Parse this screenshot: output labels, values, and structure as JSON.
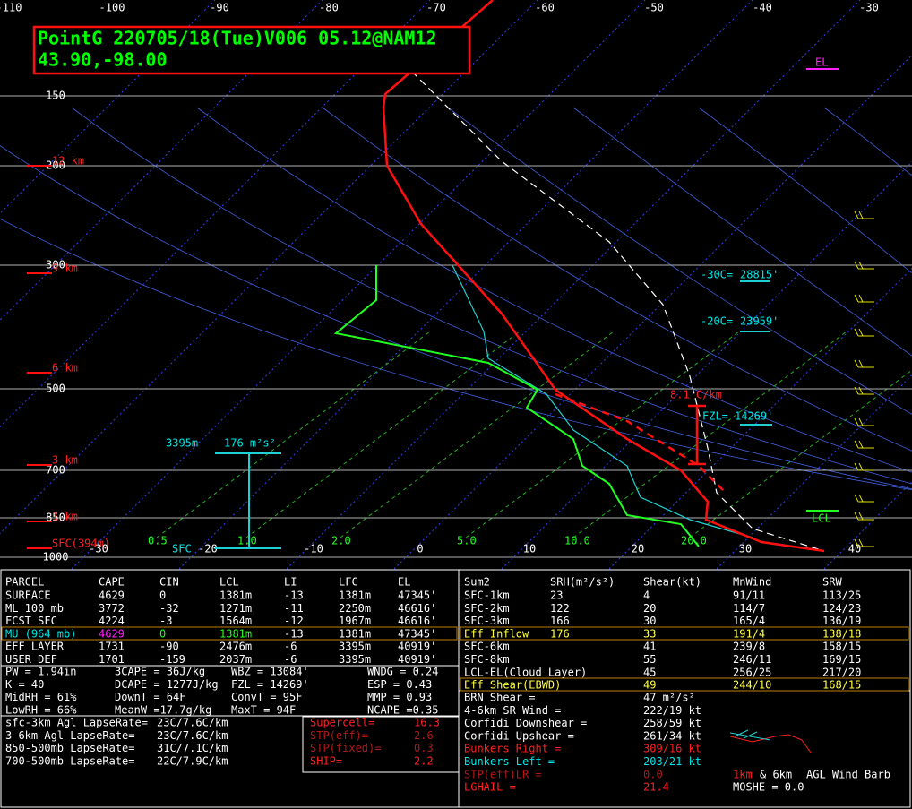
{
  "header": {
    "title": "PointG 220705/18(Tue)V006 05.12@NAM12",
    "location": "43.90,-98.00"
  },
  "skewt": {
    "top_temps": [
      "-110",
      "-100",
      "-90",
      "-80",
      "-70",
      "-60",
      "-50",
      "-40",
      "-30"
    ],
    "bottom_temps": [
      "-30",
      "-20",
      "-10",
      "0",
      "10",
      "20",
      "30",
      "40"
    ],
    "pressures": [
      "150",
      "200",
      "300",
      "500",
      "700",
      "850",
      "1000"
    ],
    "heights": [
      "12 km",
      "9 km",
      "6 km",
      "3 km",
      "1 km",
      "SFC(394m)"
    ],
    "mixing_ratios": [
      "0.5",
      "1.0",
      "2.0",
      "5.0",
      "10.0",
      "20.0"
    ],
    "annotations": {
      "el": "EL",
      "m30c": "-30C=",
      "m30c_height": "28815'",
      "m20c": "-20C=",
      "m20c_height": "23959'",
      "fzl": "FZL=",
      "fzl_height": "14269'",
      "lapse": "8.1 C/km",
      "eff_top": "3395m",
      "eff_srh": "176 m²s²",
      "sfc": "SFC",
      "lcl": "LCL"
    }
  },
  "parcel_table": {
    "header": [
      "PARCEL",
      "CAPE",
      "CIN",
      "LCL",
      "LI",
      "LFC",
      "EL"
    ],
    "rows": [
      [
        "SURFACE",
        "4629",
        "0",
        "1381m",
        "-13",
        "1381m",
        "47345'"
      ],
      [
        "ML 100 mb",
        "3772",
        "-32",
        "1271m",
        "-11",
        "2250m",
        "46616'"
      ],
      [
        "FCST SFC",
        "4224",
        "-3",
        "1564m",
        "-12",
        "1967m",
        "46616'"
      ],
      [
        "MU (964 mb)",
        "4629",
        "0",
        "1381m",
        "-13",
        "1381m",
        "47345'"
      ],
      [
        "EFF LAYER",
        "1731",
        "-90",
        "2476m",
        "-6",
        "3395m",
        "40919'"
      ],
      [
        "USER DEF",
        "1701",
        "-159",
        "2037m",
        "-6",
        "3395m",
        "40919'"
      ]
    ]
  },
  "indices": [
    [
      "PW = 1.94in",
      "3CAPE = 36J/kg",
      "WBZ = 13084'",
      "WNDG = 0.24"
    ],
    [
      "K = 40",
      "DCAPE = 1277J/kg",
      "FZL = 14269'",
      "ESP = 0.43"
    ],
    [
      "MidRH = 61%",
      "DownT = 64F",
      "ConvT = 95F",
      "MMP = 0.93"
    ],
    [
      "LowRH = 66%",
      "MeanW =17.7g/kg",
      "MaxT = 94F",
      "NCAPE =0.35"
    ]
  ],
  "lapse_rates": [
    [
      "sfc-3km Agl LapseRate=",
      "23C/7.6C/km"
    ],
    [
      "3-6km Agl LapseRate=",
      "23C/7.6C/km"
    ],
    [
      "850-500mb LapseRate=",
      "31C/7.1C/km"
    ],
    [
      "700-500mb LapseRate=",
      "22C/7.9C/km"
    ]
  ],
  "composites": [
    [
      "Supercell=",
      "16.3"
    ],
    [
      "STP(eff)=",
      "2.6"
    ],
    [
      "STP(fixed)=",
      "0.3"
    ],
    [
      "SHIP=",
      "2.2"
    ]
  ],
  "kinematic_table": {
    "header": [
      "Sum2",
      "SRH(m²/s²)",
      "Shear(kt)",
      "MnWind",
      "SRW"
    ],
    "rows": [
      [
        "SFC-1km",
        "23",
        "4",
        "91/11",
        "113/25"
      ],
      [
        "SFC-2km",
        "122",
        "20",
        "114/7",
        "124/23"
      ],
      [
        "SFC-3km",
        "166",
        "30",
        "165/4",
        "136/19"
      ],
      [
        "Eff Inflow",
        "176",
        "33",
        "191/4",
        "138/18"
      ],
      [
        "SFC-6km",
        null,
        "41",
        "239/8",
        "158/15"
      ],
      [
        "SFC-8km",
        null,
        "55",
        "246/11",
        "169/15"
      ],
      [
        "LCL-EL(Cloud Layer)",
        null,
        "45",
        "256/25",
        "217/20"
      ],
      [
        "Eff Shear(EBWD)",
        null,
        "49",
        "244/10",
        "168/15"
      ]
    ]
  },
  "kinematic_extra": [
    [
      "BRN Shear =",
      "47 m²/s²"
    ],
    [
      "4-6km SR Wind =",
      "222/19 kt"
    ],
    [
      "Corfidi Downshear =",
      "258/59 kt"
    ],
    [
      "Corfidi Upshear =",
      "261/34 kt"
    ],
    [
      "Bunkers Right =",
      "309/16 kt"
    ],
    [
      "Bunkers Left =",
      "203/21 kt"
    ],
    [
      "STP(eff)LR =",
      "0.0"
    ],
    [
      "LGHAIL =",
      "21.4"
    ]
  ],
  "barb_legend": {
    "one_km": "1km",
    "six_km": "& 6km",
    "rest": "AGL Wind Barb",
    "moshe": "MOSHE = 0.0"
  }
}
